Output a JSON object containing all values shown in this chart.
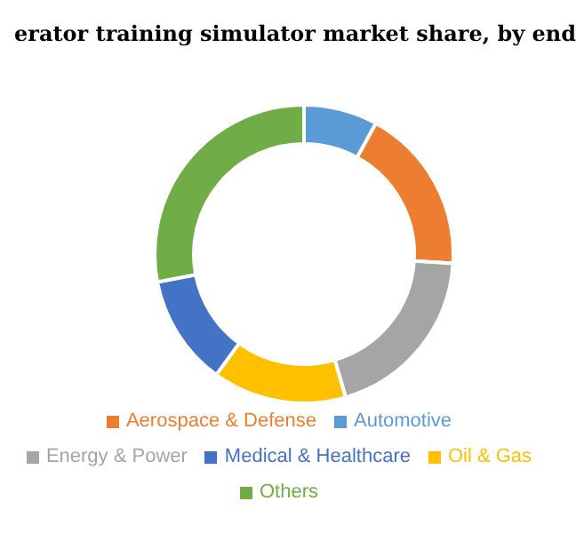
{
  "chart_data": {
    "type": "donut",
    "title": "erator training simulator market share, by end",
    "categories": [
      "Automotive",
      "Aerospace & Defense",
      "Energy & Power",
      "Oil & Gas",
      "Medical & Healthcare",
      "Others"
    ],
    "values": [
      8,
      18,
      19.5,
      14.5,
      12,
      28
    ],
    "colors": [
      "#5b9bd5",
      "#ed7d31",
      "#a5a5a5",
      "#ffc000",
      "#4472c4",
      "#70ad47"
    ],
    "legend": "bottom"
  }
}
